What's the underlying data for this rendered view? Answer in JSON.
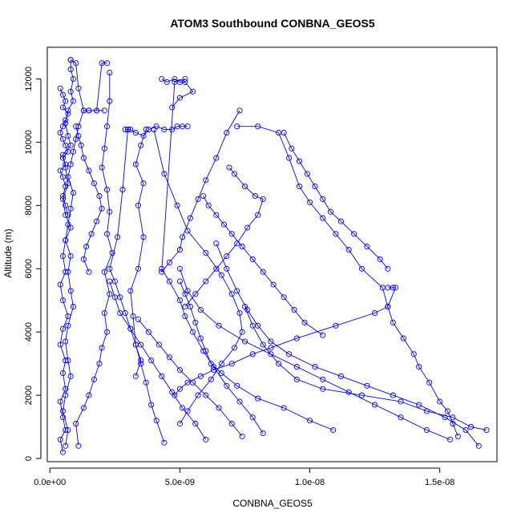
{
  "chart_data": {
    "type": "scatter",
    "title": "ATOM3 Southbound CONBNA_GEOS5",
    "xlabel": "CONBNA_GEOS5",
    "ylabel": "Altitude (m)",
    "xlim": [
      -1e-10,
      1.72e-08
    ],
    "ylim": [
      -100,
      13000
    ],
    "x_ticks": [
      {
        "value": 0,
        "label": "0.0e+00"
      },
      {
        "value": 5e-09,
        "label": "5.0e-09"
      },
      {
        "value": 1e-08,
        "label": "1.0e-08"
      },
      {
        "value": 1.5e-08,
        "label": "1.5e-08"
      }
    ],
    "y_ticks": [
      {
        "value": 0,
        "label": "0"
      },
      {
        "value": 2000,
        "label": "2000"
      },
      {
        "value": 4000,
        "label": "4000"
      },
      {
        "value": 6000,
        "label": "6000"
      },
      {
        "value": 8000,
        "label": "8000"
      },
      {
        "value": 10000,
        "label": "10000"
      },
      {
        "value": 12000,
        "label": "12000"
      }
    ],
    "color": "#0000ff",
    "marker": "open-circle",
    "connected": true,
    "series": [
      {
        "x": [
          5e-10,
          4e-10,
          6e-10,
          5e-10,
          4e-10,
          6e-10,
          5e-10,
          6e-10,
          4e-10,
          5e-10,
          7e-10,
          5e-10,
          4e-10,
          6e-10,
          5e-10,
          6e-10,
          8e-10,
          6e-10,
          5e-10,
          7e-10,
          6e-10,
          5e-10,
          8e-10,
          7e-10,
          6e-10,
          7e-10,
          9e-10,
          8e-10,
          9e-10,
          8e-10,
          8e-10
        ],
        "y": [
          200,
          600,
          900,
          1300,
          1800,
          2200,
          2700,
          3100,
          3600,
          4100,
          4500,
          5000,
          5500,
          5900,
          6400,
          6900,
          7300,
          7700,
          8200,
          8700,
          9200,
          9600,
          9900,
          10200,
          10600,
          11000,
          11300,
          11600,
          12000,
          12300,
          12600
        ]
      },
      {
        "x": [
          6e-10,
          7e-10,
          5e-10,
          6e-10,
          8e-10,
          7e-10,
          6e-10,
          7e-10,
          9e-10,
          8e-10,
          7e-10,
          8e-10,
          6e-10,
          7e-10,
          8e-10,
          9e-10,
          7e-10,
          8e-10,
          9e-10,
          1e-09,
          1.1e-09,
          1.3e-09,
          1.5e-09,
          1.8e-09,
          2.1e-09
        ],
        "y": [
          400,
          900,
          1500,
          2000,
          2600,
          3100,
          3700,
          4200,
          4800,
          5300,
          5900,
          6400,
          6900,
          7400,
          7900,
          8400,
          8900,
          9300,
          9700,
          10100,
          10500,
          11000,
          11000,
          11000,
          11000
        ]
      },
      {
        "x": [
          1.1e-09,
          1e-09,
          1.3e-09,
          1.5e-09,
          1.7e-09,
          1.9e-09,
          2e-09,
          2.2e-09,
          2.1e-09,
          2.3e-09,
          2.1e-09,
          2.4e-09,
          2.2e-09,
          2.3e-09,
          2.2e-09,
          2e-09,
          2.1e-09,
          2.2e-09,
          2.3e-09,
          2.3e-09
        ],
        "y": [
          400,
          1100,
          1600,
          2000,
          2500,
          3000,
          3500,
          4000,
          4600,
          5200,
          5900,
          6500,
          7100,
          7800,
          8500,
          9200,
          9800,
          10500,
          11300,
          12200
        ]
      },
      {
        "x": [
          3.3e-09,
          3.5e-09,
          3.3e-09,
          3.2e-09,
          3.1e-09,
          3.4e-09,
          3.6e-09,
          3.4e-09,
          3.6e-09,
          3.3e-09,
          3.5e-09,
          3.7e-09
        ],
        "y": [
          2600,
          3100,
          3600,
          4500,
          5300,
          6000,
          7000,
          8000,
          8700,
          9300,
          9900,
          10400
        ]
      },
      {
        "x": [
          4.4e-09,
          4.1e-09,
          3.9e-09,
          3.7e-09,
          3.5e-09,
          3.3e-09,
          3.1e-09,
          2.9e-09,
          2.7e-09,
          2.5e-09,
          2.3e-09,
          2.6e-09,
          2.8e-09,
          3e-09
        ],
        "y": [
          500,
          1200,
          1700,
          2400,
          3000,
          3600,
          4100,
          4600,
          5100,
          5600,
          6000,
          7000,
          8500,
          10400
        ]
      },
      {
        "x": [
          6e-09,
          5.6e-09,
          5.1e-09,
          4.7e-09,
          4.3e-09,
          3.9e-09,
          3.5e-09,
          3.1e-09,
          2.7e-09,
          2.5e-09,
          2.3e-09
        ],
        "y": [
          600,
          1100,
          1600,
          2100,
          2600,
          3100,
          3600,
          4100,
          4600,
          5100,
          5600
        ]
      },
      {
        "x": [
          7.4e-09,
          7e-09,
          6.5e-09,
          6e-09,
          5.5e-09,
          5e-09,
          4.6e-09,
          4.2e-09,
          3.8e-09,
          3.4e-09
        ],
        "y": [
          700,
          1100,
          1600,
          2000,
          2400,
          2800,
          3200,
          3600,
          4000,
          4400
        ]
      },
      {
        "x": [
          5e-09,
          5.3e-09,
          5.7e-09,
          6.2e-09,
          6.6e-09,
          7.1e-09,
          7.4e-09,
          7.3e-09,
          7e-09,
          6.6e-09,
          6e-09,
          5.3e-09,
          4.9e-09,
          4.4e-09,
          4e-09
        ],
        "y": [
          1100,
          1500,
          2000,
          2500,
          3000,
          3500,
          4000,
          4600,
          5200,
          5800,
          6500,
          7200,
          8000,
          9000,
          10400
        ]
      },
      {
        "x": [
          8.2e-09,
          7.8e-09,
          7.3e-09,
          6.8e-09,
          6.3e-09,
          5.9e-09,
          5.5e-09,
          5.2e-09,
          5e-09,
          4.6e-09,
          4.3e-09
        ],
        "y": [
          800,
          1300,
          1800,
          2300,
          2900,
          3400,
          4000,
          4500,
          5000,
          5600,
          6000
        ]
      },
      {
        "x": [
          1.09e-08,
          1e-08,
          9e-09,
          8e-09,
          7.2e-09,
          6.6e-09,
          6.2e-09,
          6e-09,
          5.8e-09,
          5.6e-09,
          5.4e-09,
          5.2e-09,
          5e-09
        ],
        "y": [
          900,
          1200,
          1600,
          1900,
          2300,
          2700,
          3000,
          3400,
          3800,
          4300,
          4800,
          5200,
          5600
        ]
      },
      {
        "x": [
          1.54e-08,
          1.45e-08,
          1.35e-08,
          1.25e-08,
          1.15e-08,
          1.05e-08,
          9.5e-09,
          8.5e-09,
          7.5e-09,
          6.5e-09,
          5.8e-09,
          5.3e-09,
          5e-09
        ],
        "y": [
          600,
          900,
          1300,
          1700,
          2100,
          2500,
          2900,
          3300,
          3700,
          4200,
          4700,
          5300,
          6000
        ]
      },
      {
        "x": [
          1.65e-08,
          1.6e-08,
          1.52e-08,
          1.42e-08,
          1.32e-08,
          1.22e-08,
          1.12e-08,
          1.02e-08,
          9.2e-09,
          8.5e-09,
          8e-09,
          7.6e-09,
          7.2e-09,
          6.8e-09,
          6.4e-09
        ],
        "y": [
          400,
          900,
          1300,
          1700,
          2000,
          2300,
          2600,
          2900,
          3300,
          3700,
          4200,
          4700,
          5300,
          6000,
          6800
        ]
      },
      {
        "x": [
          1.68e-08,
          1.62e-08,
          1.55e-08,
          1.45e-08,
          1.35e-08,
          1.2e-08,
          1.05e-08,
          9.5e-09,
          8.8e-09,
          8.2e-09,
          7.8e-09,
          7.5e-09
        ],
        "y": [
          900,
          1000,
          1300,
          1500,
          1800,
          2000,
          2200,
          2500,
          3000,
          3600,
          4200,
          4800
        ]
      },
      {
        "x": [
          1.57e-08,
          1.55e-08,
          1.53e-08,
          1.5e-08,
          1.46e-08,
          1.42e-08,
          1.4e-08,
          1.36e-08,
          1.32e-08,
          1.3e-08,
          1.28e-08,
          1.2e-08,
          1.15e-08,
          1.1e-08,
          1.05e-08,
          1e-08,
          9.6e-09,
          9.2e-09,
          8.8e-09,
          8e-09,
          7.2e-09
        ],
        "y": [
          700,
          1100,
          1500,
          1800,
          2400,
          2900,
          3300,
          3800,
          4300,
          4800,
          5400,
          6000,
          6600,
          7100,
          7600,
          8100,
          8600,
          9500,
          10300,
          10500,
          10500
        ]
      },
      {
        "x": [
          1.3e-08,
          1.32e-08,
          1.33e-08,
          1.3e-08,
          1.25e-08,
          1.1e-08,
          9.5e-09,
          8.5e-09,
          7.8e-09,
          7e-09,
          6.3e-09,
          5.8e-09,
          5.3e-09,
          5e-09,
          4.8e-09
        ],
        "y": [
          5400,
          5400,
          5400,
          4800,
          4600,
          4200,
          3800,
          3500,
          3300,
          3000,
          2800,
          2600,
          2400,
          2200,
          2000
        ]
      },
      {
        "x": [
          7.3e-09,
          6.8e-09,
          6.4e-09,
          6e-09,
          5.7e-09,
          5.4e-09,
          5.1e-09,
          5e-09,
          4.6e-09,
          4.3e-09,
          4.8e-09,
          5.2e-09
        ],
        "y": [
          11000,
          10300,
          9500,
          8800,
          8200,
          7600,
          7000,
          6600,
          6200,
          5900,
          11900,
          12000
        ]
      },
      {
        "x": [
          2.9e-09,
          3e-09,
          3.1e-09,
          3.3e-09,
          3.6e-09,
          3.8e-09,
          4.1e-09,
          4.4e-09,
          4.7e-09,
          4.9e-09,
          5.1e-09,
          5.3e-09
        ],
        "y": [
          10400,
          10400,
          10400,
          10300,
          10200,
          10400,
          10500,
          10400,
          10400,
          10500,
          10500,
          10500
        ]
      },
      {
        "x": [
          4.3e-09,
          4.5e-09,
          4.8e-09,
          5e-09,
          5.2e-09,
          5.5e-09,
          5e-09,
          4.7e-09
        ],
        "y": [
          12000,
          11900,
          12000,
          11900,
          11900,
          11600,
          11400,
          11100
        ]
      },
      {
        "x": [
          8e-10,
          1e-09,
          1.1e-09,
          1.3e-09,
          1.5e-09,
          1.8e-09,
          2e-09,
          2.2e-09
        ],
        "y": [
          12600,
          12500,
          11700,
          11000,
          11000,
          11000,
          12500,
          12500
        ]
      },
      {
        "x": [
          4e-10,
          5e-10,
          6e-10,
          5e-10,
          7e-10,
          6e-10,
          5e-10,
          4e-10,
          5e-10,
          6e-10,
          7e-10,
          5e-10,
          6e-10,
          4e-10,
          5e-10,
          6e-10,
          5e-10,
          6e-10,
          7e-10
        ],
        "y": [
          11700,
          11500,
          11300,
          11100,
          10900,
          10700,
          10500,
          10300,
          10100,
          9900,
          9700,
          9500,
          9300,
          9100,
          8900,
          8600,
          8300,
          8000,
          7700
        ]
      },
      {
        "x": [
          1e-09,
          1.1e-09,
          1.2e-09,
          1.3e-09,
          1.5e-09,
          1.7e-09,
          1.9e-09,
          2e-09,
          1.8e-09,
          1.6e-09,
          1.4e-09,
          1.3e-09,
          1.5e-09
        ],
        "y": [
          10500,
          10200,
          9900,
          9500,
          9100,
          8700,
          8300,
          7900,
          7500,
          7100,
          6700,
          6300,
          5900
        ]
      },
      {
        "x": [
          9e-09,
          9.3e-09,
          9.6e-09,
          9.9e-09,
          1.02e-08,
          1.05e-08,
          1.08e-08,
          1.12e-08,
          1.17e-08,
          1.22e-08,
          1.27e-08,
          1.3e-08
        ],
        "y": [
          10300,
          9800,
          9400,
          9000,
          8600,
          8200,
          7800,
          7500,
          7100,
          6700,
          6300,
          6000
        ]
      },
      {
        "x": [
          6.9e-09,
          7.1e-09,
          7.5e-09,
          7.9e-09,
          8.2e-09,
          8e-09,
          7.6e-09,
          7.2e-09,
          6.8e-09,
          6.4e-09,
          6e-09,
          5.6e-09,
          5.2e-09
        ],
        "y": [
          9200,
          9000,
          8600,
          8300,
          8200,
          7700,
          7300,
          6800,
          6400,
          6000,
          5600,
          5200,
          4800
        ]
      },
      {
        "x": [
          5.9e-09,
          6.1e-09,
          6.4e-09,
          6.7e-09,
          7e-09,
          7.4e-09,
          7.8e-09,
          8.2e-09,
          8.6e-09,
          9e-09,
          9.4e-09,
          9.8e-09,
          1.05e-08
        ],
        "y": [
          8300,
          8000,
          7700,
          7400,
          7100,
          6700,
          6300,
          5900,
          5500,
          5100,
          4700,
          4300,
          3900
        ]
      }
    ]
  }
}
